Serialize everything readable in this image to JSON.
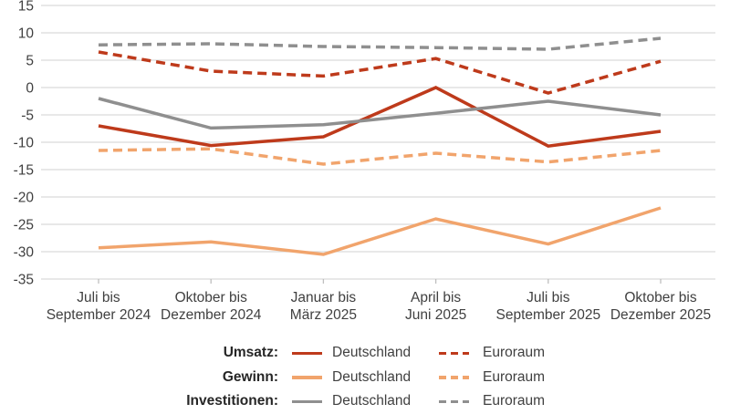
{
  "chart_data": {
    "type": "line",
    "title": "",
    "xlabel": "",
    "ylabel": "",
    "categories": [
      [
        "Juli bis",
        "September 2024"
      ],
      [
        "Oktober bis",
        "Dezember 2024"
      ],
      [
        "Januar bis",
        "März 2025"
      ],
      [
        "April bis",
        "Juni 2025"
      ],
      [
        "Juli bis",
        "September 2025"
      ],
      [
        "Oktober bis",
        "Dezember 2025"
      ]
    ],
    "y_ticks": [
      15,
      10,
      5,
      0,
      -5,
      -10,
      -15,
      -20,
      -25,
      -30,
      -35
    ],
    "ylim": [
      -35,
      15
    ],
    "grid": "horizontal",
    "legend_position": "bottom",
    "series": [
      {
        "name": "Umsatz Deutschland",
        "group": "Umsatz",
        "region": "Deutschland",
        "style": "solid",
        "color": "#be3a1b",
        "values": [
          -7,
          -10.6,
          -9,
          0,
          -10.7,
          -8
        ]
      },
      {
        "name": "Umsatz Euroraum",
        "group": "Umsatz",
        "region": "Euroraum",
        "style": "dashed",
        "color": "#be3a1b",
        "values": [
          6.5,
          3,
          2.1,
          5.3,
          -1,
          4.8
        ]
      },
      {
        "name": "Gewinn Deutschland",
        "group": "Gewinn",
        "region": "Deutschland",
        "style": "solid",
        "color": "#f1a46c",
        "values": [
          -29.3,
          -28.2,
          -30.5,
          -24,
          -28.6,
          -22
        ]
      },
      {
        "name": "Gewinn Euroraum",
        "group": "Gewinn",
        "region": "Euroraum",
        "style": "dashed",
        "color": "#f1a46c",
        "values": [
          -11.5,
          -11.2,
          -14,
          -12,
          -13.6,
          -11.5
        ]
      },
      {
        "name": "Investitionen Deutschland",
        "group": "Investitionen",
        "region": "Deutschland",
        "style": "solid",
        "color": "#8f8f8f",
        "values": [
          -2,
          -7.4,
          -6.8,
          -4.7,
          -2.5,
          -5
        ]
      },
      {
        "name": "Investitionen Euroraum",
        "group": "Investitionen",
        "region": "Euroraum",
        "style": "dashed",
        "color": "#8f8f8f",
        "values": [
          7.8,
          8,
          7.5,
          7.3,
          7,
          9
        ]
      }
    ]
  },
  "legend": {
    "rows": [
      {
        "group_label": "Umsatz:",
        "solid_label": "Deutschland",
        "dashed_label": "Euroraum",
        "color": "#be3a1b"
      },
      {
        "group_label": "Gewinn:",
        "solid_label": "Deutschland",
        "dashed_label": "Euroraum",
        "color": "#f1a46c"
      },
      {
        "group_label": "Investitionen:",
        "solid_label": "Deutschland",
        "dashed_label": "Euroraum",
        "color": "#8f8f8f"
      }
    ]
  },
  "colors": {
    "grid_line": "#d9d9d9",
    "tick_mark": "#bfbfbf",
    "axis_text": "#404040",
    "umsatz": "#be3a1b",
    "gewinn": "#f1a46c",
    "investitionen": "#8f8f8f"
  }
}
